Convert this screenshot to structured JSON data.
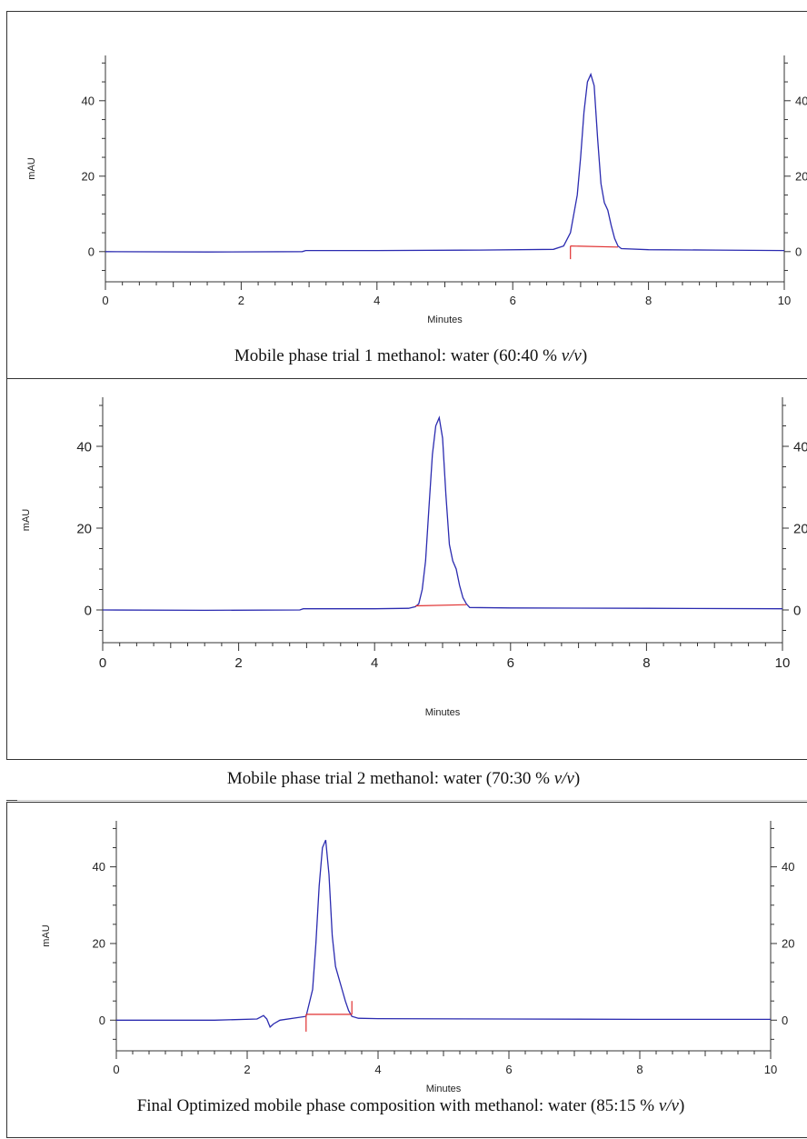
{
  "chart_data": [
    {
      "type": "line",
      "title": "",
      "xlabel": "Minutes",
      "ylabel": "mAU",
      "xlim": [
        0,
        10
      ],
      "ylim": [
        -8,
        52
      ],
      "x_ticks": [
        "0",
        "2",
        "4",
        "6",
        "8",
        "10"
      ],
      "y_ticks_left": [
        "0",
        "20",
        "40"
      ],
      "y_ticks_right": [
        "0",
        "20",
        "40"
      ],
      "caption_text": "Mobile phase trial 1 methanol: water (60:40 % ",
      "caption_unit": "v/v",
      "caption_end": ")",
      "series": [
        {
          "color": "#2b2bb0",
          "x": [
            0,
            1.5,
            2.9,
            2.95,
            4.0,
            5.5,
            6.6,
            6.75,
            6.85,
            6.95,
            7.0,
            7.05,
            7.1,
            7.15,
            7.2,
            7.25,
            7.3,
            7.35,
            7.4,
            7.45,
            7.5,
            7.55,
            7.6,
            8.0,
            9.0,
            10.0
          ],
          "y": [
            0,
            -0.1,
            0,
            0.3,
            0.3,
            0.4,
            0.6,
            1.5,
            5,
            15,
            25,
            37,
            45,
            47,
            44,
            30,
            18,
            13,
            11,
            7,
            3.5,
            1.5,
            0.8,
            0.5,
            0.4,
            0.3
          ]
        },
        {
          "name": "baseline",
          "color": "#e03030",
          "x": [
            6.85,
            7.55
          ],
          "y": [
            1.5,
            1.2
          ]
        }
      ],
      "markers": [
        {
          "x": 6.85,
          "y_from": -2,
          "y_to": 1.5
        }
      ]
    },
    {
      "type": "line",
      "title": "",
      "xlabel": "Minutes",
      "ylabel": "mAU",
      "xlim": [
        0,
        10
      ],
      "ylim": [
        -8,
        52
      ],
      "x_ticks": [
        "0",
        "2",
        "4",
        "6",
        "8",
        "10"
      ],
      "y_ticks_left": [
        "0",
        "20",
        "40"
      ],
      "y_ticks_right": [
        "0",
        "20",
        "40"
      ],
      "caption_text": "Mobile phase trial 2 methanol: water (70:30 % ",
      "caption_unit": "v/v",
      "caption_end": ")",
      "series": [
        {
          "color": "#2b2bb0",
          "x": [
            0,
            1.5,
            2.9,
            2.95,
            4.0,
            4.5,
            4.6,
            4.65,
            4.7,
            4.75,
            4.8,
            4.85,
            4.9,
            4.95,
            5.0,
            5.05,
            5.1,
            5.15,
            5.2,
            5.25,
            5.3,
            5.35,
            5.4,
            6.0,
            8.0,
            10.0
          ],
          "y": [
            0,
            -0.1,
            0,
            0.3,
            0.3,
            0.4,
            0.8,
            1.5,
            5,
            12,
            25,
            38,
            45,
            47,
            42,
            28,
            16,
            12,
            10,
            6,
            3,
            1.5,
            0.6,
            0.5,
            0.4,
            0.3
          ]
        },
        {
          "name": "baseline",
          "color": "#e03030",
          "x": [
            4.6,
            5.35
          ],
          "y": [
            1.0,
            1.3
          ]
        }
      ],
      "markers": []
    },
    {
      "type": "line",
      "title": "",
      "xlabel": "Minutes",
      "ylabel": "mAU",
      "xlim": [
        0,
        10
      ],
      "ylim": [
        -8,
        52
      ],
      "x_ticks": [
        "0",
        "2",
        "4",
        "6",
        "8",
        "10"
      ],
      "y_ticks_left": [
        "0",
        "20",
        "40"
      ],
      "y_ticks_right": [
        "0",
        "20",
        "40"
      ],
      "caption_text": "Final Optimized mobile phase composition with methanol: water (85:15 % ",
      "caption_unit": "v/v",
      "caption_end": ")",
      "series": [
        {
          "color": "#2b2bb0",
          "x": [
            0,
            1.5,
            2.15,
            2.25,
            2.3,
            2.35,
            2.4,
            2.5,
            2.9,
            3.0,
            3.05,
            3.1,
            3.15,
            3.2,
            3.25,
            3.3,
            3.35,
            3.4,
            3.45,
            3.5,
            3.55,
            3.6,
            3.7,
            4.0,
            6.0,
            8.0,
            10.0
          ],
          "y": [
            0,
            0,
            0.3,
            1.2,
            0.3,
            -1.8,
            -1,
            0,
            1,
            8,
            20,
            35,
            45,
            47,
            38,
            22,
            14,
            11,
            8,
            5,
            2.5,
            1,
            0.5,
            0.4,
            0.3,
            0.2,
            0.2
          ]
        },
        {
          "name": "baseline",
          "color": "#e03030",
          "x": [
            2.9,
            3.6
          ],
          "y": [
            1.5,
            1.5
          ]
        }
      ],
      "markers": [
        {
          "x": 2.9,
          "y_from": -3,
          "y_to": 1.5
        },
        {
          "x": 3.6,
          "y_from": 1.5,
          "y_to": 5
        }
      ]
    }
  ]
}
